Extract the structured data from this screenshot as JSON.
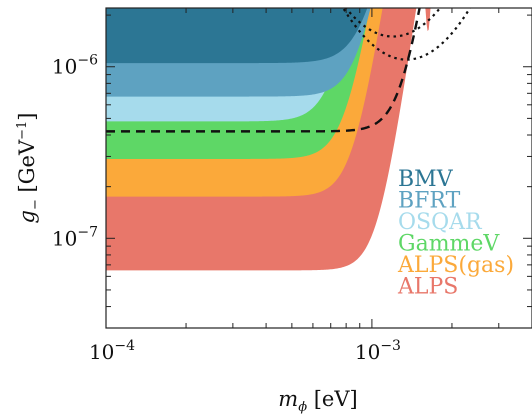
{
  "chart_data": {
    "type": "area",
    "xscale": "log",
    "yscale": "log",
    "xlim": [
      0.0001,
      0.004
    ],
    "ylim": [
      3e-08,
      2.2e-06
    ],
    "xlabel": {
      "symbol": "m",
      "subscript": "ϕ",
      "unit": " [eV]"
    },
    "ylabel": {
      "symbol": "g",
      "subscript": "−",
      "unit": "  [GeV",
      "exponent": "−1",
      "close": "]"
    },
    "x_ticks": [
      {
        "value": 0.0001,
        "base": "10",
        "exp": "−4"
      },
      {
        "value": 0.001,
        "base": "10",
        "exp": "−3"
      }
    ],
    "y_ticks": [
      {
        "value": 1e-07,
        "base": "10",
        "exp": "−7"
      },
      {
        "value": 1e-06,
        "base": "10",
        "exp": "−6"
      }
    ],
    "grid": false,
    "legend_position": "lower-right",
    "series": [
      {
        "name": "ALPS",
        "color": "#e8776a",
        "floor": 6.5e-08,
        "knee": 0.00105,
        "hump_exp": 2.6,
        "wiggle_start": 0.0015
      },
      {
        "name": "ALPS(gas)",
        "color": "#fba93a",
        "floor": 1.75e-07,
        "knee": 0.00085,
        "hump_exp": 2.4,
        "wiggle_start": 0.0013
      },
      {
        "name": "GammeV",
        "color": "#5ed766",
        "floor": 2.9e-07,
        "knee": 0.0008,
        "hump_exp": 2.3,
        "wiggle_start": 0.0
      },
      {
        "name": "OSQAR",
        "color": "#a6dbec",
        "floor": 4.8e-07,
        "knee": 0.00072,
        "hump_exp": 2.2,
        "wiggle_start": 0.0
      },
      {
        "name": "BFRT",
        "color": "#5ea2c1",
        "floor": 6.7e-07,
        "knee": 0.0009,
        "hump_exp": 2.2,
        "wiggle_start": 0.0
      },
      {
        "name": "BMV",
        "color": "#2c7694",
        "floor": 1.05e-06,
        "knee": 0.00095,
        "hump_exp": 2.0,
        "wiggle_start": 0.0
      }
    ],
    "dashed_curve": {
      "floor": 4.2e-07,
      "knee": 0.0013,
      "hump_exp": 2.4
    },
    "dotted_curves": [
      {
        "vertex_x": 0.0012,
        "vertex_y": 1.5e-06
      },
      {
        "vertex_x": 0.00135,
        "vertex_y": 1.1e-06
      }
    ]
  }
}
